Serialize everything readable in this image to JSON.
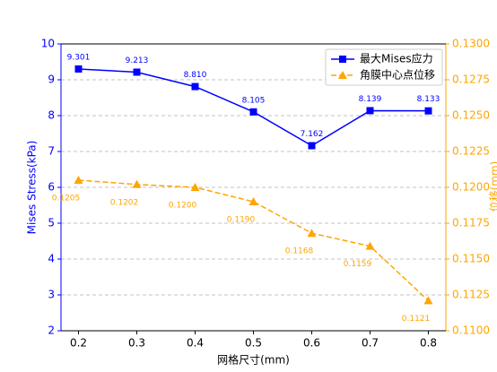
{
  "chart_data": {
    "type": "line",
    "x_label": "网格尺寸(mm)",
    "y_label": "Mises Stress(kPa)",
    "y2_label": "位移(mm)",
    "x": [
      0.2,
      0.3,
      0.4,
      0.5,
      0.6,
      0.7,
      0.8
    ],
    "xlim": [
      0.17,
      0.83
    ],
    "xticks": [
      0.2,
      0.3,
      0.4,
      0.5,
      0.6,
      0.7,
      0.8
    ],
    "ylim": [
      2,
      10
    ],
    "yticks": [
      2,
      3,
      4,
      5,
      6,
      7,
      8,
      9,
      10
    ],
    "y2lim": [
      0.11,
      0.13
    ],
    "y2ticks": [
      {
        "value": 0.11,
        "label": "0.1100"
      },
      {
        "value": 0.1125,
        "label": "0.1125"
      },
      {
        "value": 0.115,
        "label": "0.1150"
      },
      {
        "value": 0.1175,
        "label": "0.1175"
      },
      {
        "value": 0.12,
        "label": "0.1200"
      },
      {
        "value": 0.1225,
        "label": "0.1225"
      },
      {
        "value": 0.125,
        "label": "0.1250"
      },
      {
        "value": 0.1275,
        "label": "0.1275"
      },
      {
        "value": 0.13,
        "label": "0.1300"
      }
    ],
    "grid": true,
    "legend": "upper right",
    "series": [
      {
        "name": "最大Mises应力",
        "color": "#0000ff",
        "marker": "square",
        "dashed": false,
        "values": [
          9.301,
          9.213,
          8.81,
          8.105,
          7.162,
          8.139,
          8.133
        ],
        "value_labels": [
          "9.301",
          "9.213",
          "8.810",
          "8.105",
          "7.162",
          "8.139",
          "8.133"
        ]
      },
      {
        "name": "角膜中心点位移",
        "color": "#ffa500",
        "marker": "triangle",
        "dashed": true,
        "axis": "y2",
        "values": [
          0.1205,
          0.1202,
          0.12,
          0.119,
          0.1168,
          0.1159,
          0.1121
        ],
        "value_labels": [
          "0.1205",
          "0.1202",
          "0.1200",
          "0.1190",
          "0.1168",
          "0.1159",
          "0.1121"
        ]
      }
    ]
  }
}
